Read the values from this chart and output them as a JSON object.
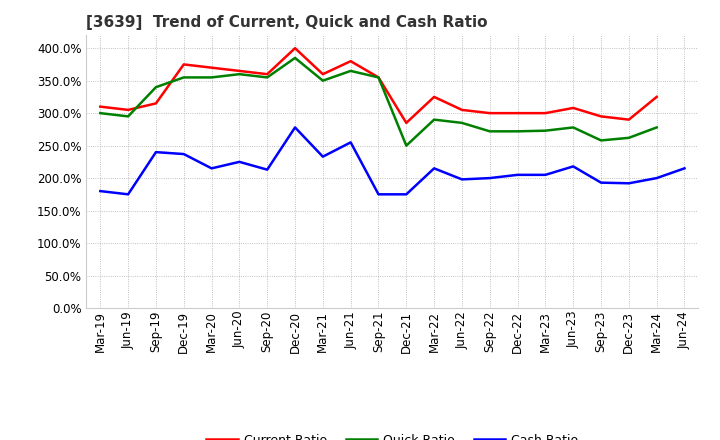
{
  "title": "[3639]  Trend of Current, Quick and Cash Ratio",
  "labels": [
    "Mar-19",
    "Jun-19",
    "Sep-19",
    "Dec-19",
    "Mar-20",
    "Jun-20",
    "Sep-20",
    "Dec-20",
    "Mar-21",
    "Jun-21",
    "Sep-21",
    "Dec-21",
    "Mar-22",
    "Jun-22",
    "Sep-22",
    "Dec-22",
    "Mar-23",
    "Jun-23",
    "Sep-23",
    "Dec-23",
    "Mar-24",
    "Jun-24"
  ],
  "current_ratio": [
    310,
    305,
    315,
    375,
    370,
    365,
    360,
    400,
    360,
    380,
    355,
    285,
    325,
    305,
    300,
    300,
    300,
    308,
    295,
    290,
    325,
    null
  ],
  "quick_ratio": [
    300,
    295,
    340,
    355,
    355,
    360,
    355,
    385,
    350,
    365,
    355,
    250,
    290,
    285,
    272,
    272,
    273,
    278,
    258,
    262,
    278,
    null
  ],
  "cash_ratio": [
    180,
    175,
    240,
    237,
    215,
    225,
    213,
    278,
    233,
    255,
    175,
    175,
    215,
    198,
    200,
    205,
    205,
    218,
    193,
    192,
    200,
    215
  ],
  "current_color": "#FF0000",
  "quick_color": "#008000",
  "cash_color": "#0000FF",
  "ylim": [
    0,
    420
  ],
  "yticks": [
    0,
    50,
    100,
    150,
    200,
    250,
    300,
    350,
    400
  ],
  "background_color": "#FFFFFF",
  "plot_bg_color": "#FFFFFF",
  "grid_color": "#AAAAAA",
  "line_width": 1.8,
  "title_fontsize": 11,
  "tick_fontsize": 8.5,
  "legend_fontsize": 9
}
